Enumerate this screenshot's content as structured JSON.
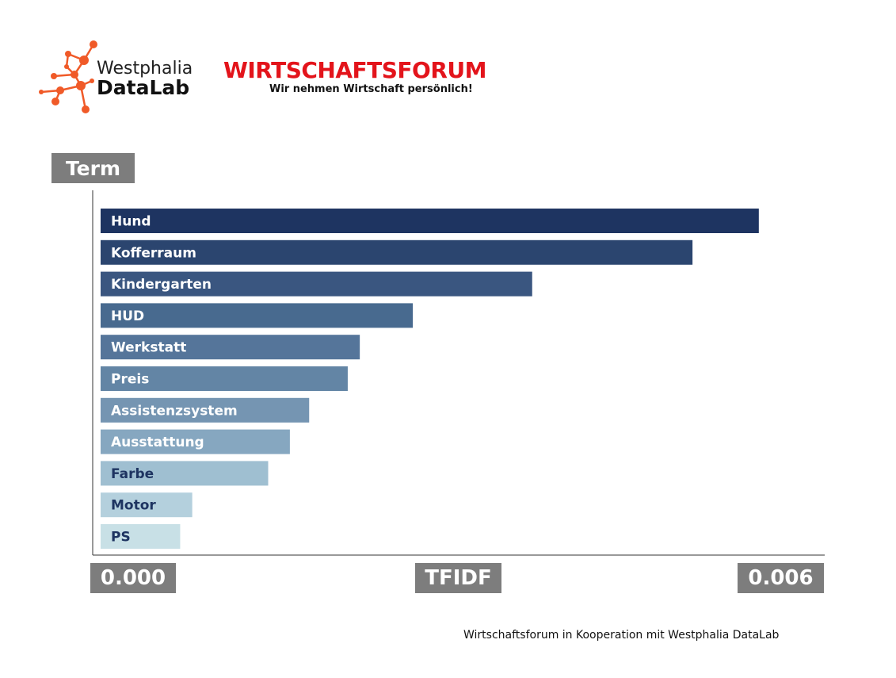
{
  "header": {
    "logo_line1": "Westphalia",
    "logo_line2": "DataLab",
    "brand_title": "WIRTSCHAFTSFORUM",
    "brand_subtitle": "Wir nehmen Wirtschaft persönlich!"
  },
  "colors": {
    "brand_red": "#e3141b",
    "logo_orange": "#f05a28",
    "label_box": "#7d7d7d"
  },
  "chart_data": {
    "type": "bar",
    "orientation": "horizontal",
    "ylabel": "Term",
    "xlabel": "TFIDF",
    "xlim": [
      0,
      0.006
    ],
    "x_tick_labels": [
      "0.000",
      "0.006"
    ],
    "grid": false,
    "categories": [
      "Hund",
      "Kofferraum",
      "Kindergarten",
      "HUD",
      "Werkstatt",
      "Preis",
      "Assistenzsystem",
      "Ausstattung",
      "Farbe",
      "Motor",
      "PS"
    ],
    "values": [
      0.00546,
      0.00491,
      0.00358,
      0.00259,
      0.00215,
      0.00205,
      0.00173,
      0.00157,
      0.00139,
      0.00076,
      0.00066
    ],
    "bar_colors": [
      "#1e3461",
      "#2b456f",
      "#3a5680",
      "#486a8f",
      "#55759a",
      "#6385a5",
      "#7595b2",
      "#86a7c0",
      "#9fbfd1",
      "#b4d0dd",
      "#c8e0e6"
    ]
  },
  "footer": {
    "text": "Wirtschaftsforum in Kooperation mit Westphalia DataLab"
  }
}
